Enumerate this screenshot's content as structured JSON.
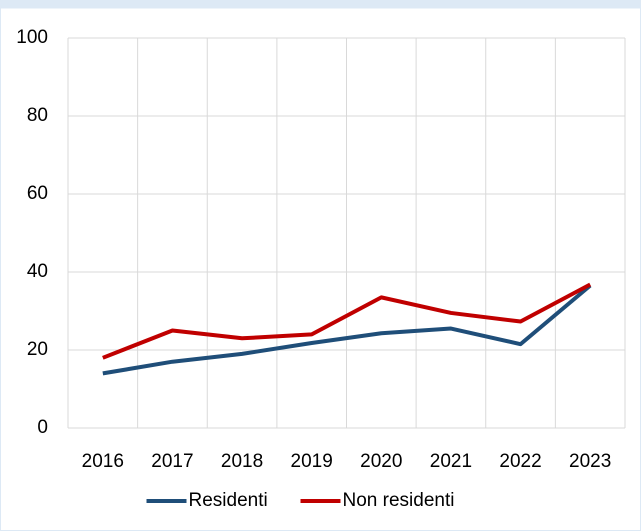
{
  "chart_data": {
    "type": "line",
    "categories": [
      "2016",
      "2017",
      "2018",
      "2019",
      "2020",
      "2021",
      "2022",
      "2023"
    ],
    "series": [
      {
        "name": "Residenti",
        "color": "#1f4e79",
        "values": [
          14,
          17,
          19,
          21.8,
          24.3,
          25.5,
          21.5,
          36.5
        ]
      },
      {
        "name": "Non residenti",
        "color": "#c00000",
        "values": [
          18,
          25,
          23,
          24,
          33.5,
          29.5,
          27.3,
          36.8
        ]
      }
    ],
    "ylim": [
      0,
      100
    ],
    "yticks": [
      0,
      20,
      40,
      60,
      80,
      100
    ],
    "grid": true,
    "legend": "bottom"
  }
}
